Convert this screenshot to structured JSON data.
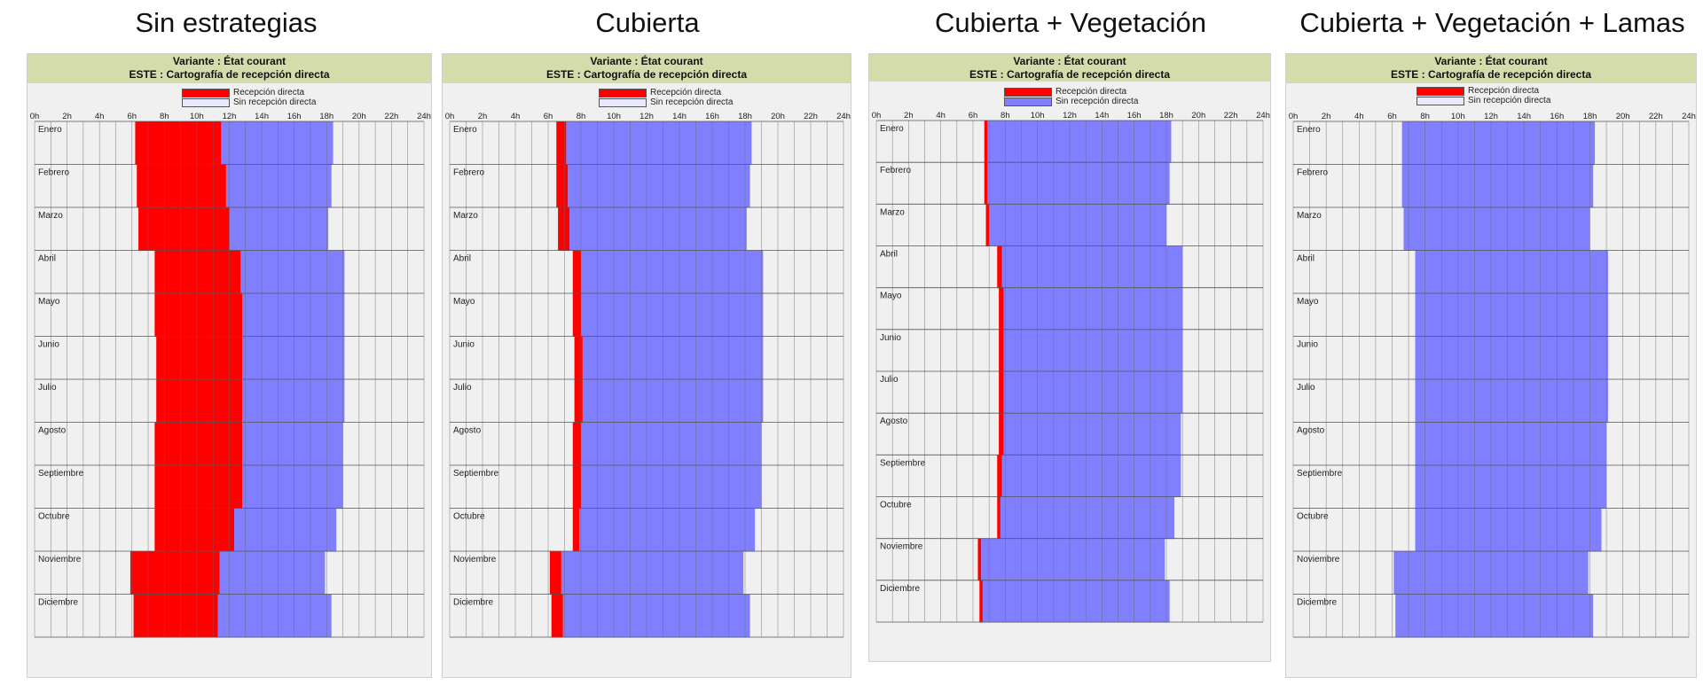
{
  "colors": {
    "direct": "#ff0000",
    "indirect": "#8080ff",
    "header_bg": "#d5dcab",
    "plot_bg": "#f0f0f0"
  },
  "legend": {
    "direct": "Recepción directa",
    "indirect": "Sin recepción directa"
  },
  "header": {
    "line1": "Variante : État courant",
    "line2": "ESTE : Cartografía de recepción directa"
  },
  "x_ticks": [
    "0h",
    "2h",
    "4h",
    "6h",
    "8h",
    "10h",
    "12h",
    "14h",
    "16h",
    "18h",
    "20h",
    "22h",
    "24h"
  ],
  "months": [
    "Enero",
    "Febrero",
    "Marzo",
    "Abril",
    "Mayo",
    "Junio",
    "Julio",
    "Agosto",
    "Septiembre",
    "Octubre",
    "Noviembre",
    "Diciembre"
  ],
  "chart_data": [
    {
      "type": "area",
      "title": "Sin estrategias",
      "xlim": [
        0,
        24
      ],
      "x_unit": "h",
      "categories": [
        "Enero",
        "Febrero",
        "Marzo",
        "Abril",
        "Mayo",
        "Junio",
        "Julio",
        "Agosto",
        "Septiembre",
        "Octubre",
        "Noviembre",
        "Diciembre"
      ],
      "series": [
        {
          "name": "Recepción directa",
          "start_h": [
            6.2,
            6.3,
            6.4,
            7.4,
            7.4,
            7.5,
            7.5,
            7.4,
            7.4,
            7.4,
            5.9,
            6.1
          ],
          "end_h": [
            11.5,
            11.8,
            12.0,
            12.7,
            12.8,
            12.8,
            12.8,
            12.8,
            12.8,
            12.3,
            11.4,
            11.3
          ]
        },
        {
          "name": "Sin recepción directa",
          "start_h": [
            11.5,
            11.8,
            12.0,
            12.7,
            12.8,
            12.8,
            12.8,
            12.8,
            12.8,
            12.3,
            11.4,
            11.3
          ],
          "end_h": [
            18.4,
            18.3,
            18.1,
            19.1,
            19.1,
            19.1,
            19.1,
            19.0,
            19.0,
            18.6,
            17.9,
            18.3
          ]
        }
      ]
    },
    {
      "type": "area",
      "title": "Cubierta",
      "xlim": [
        0,
        24
      ],
      "x_unit": "h",
      "categories": [
        "Enero",
        "Febrero",
        "Marzo",
        "Abril",
        "Mayo",
        "Junio",
        "Julio",
        "Agosto",
        "Septiembre",
        "Octubre",
        "Noviembre",
        "Diciembre"
      ],
      "series": [
        {
          "name": "Recepción directa",
          "start_h": [
            6.5,
            6.5,
            6.6,
            7.5,
            7.5,
            7.6,
            7.6,
            7.5,
            7.5,
            7.5,
            6.1,
            6.2
          ],
          "end_h": [
            7.1,
            7.2,
            7.3,
            8.0,
            8.0,
            8.1,
            8.1,
            8.0,
            8.0,
            7.9,
            6.8,
            6.9
          ]
        },
        {
          "name": "Sin recepción directa",
          "start_h": [
            7.1,
            7.2,
            7.3,
            8.0,
            8.0,
            8.1,
            8.1,
            8.0,
            8.0,
            7.9,
            6.8,
            6.9
          ],
          "end_h": [
            18.4,
            18.3,
            18.1,
            19.1,
            19.1,
            19.1,
            19.1,
            19.0,
            19.0,
            18.6,
            17.9,
            18.3
          ]
        }
      ]
    },
    {
      "type": "area",
      "title": "Cubierta + Vegetación",
      "xlim": [
        0,
        24
      ],
      "x_unit": "h",
      "categories": [
        "Enero",
        "Febrero",
        "Marzo",
        "Abril",
        "Mayo",
        "Junio",
        "Julio",
        "Agosto",
        "Septiembre",
        "Octubre",
        "Noviembre",
        "Diciembre"
      ],
      "series": [
        {
          "name": "Recepción directa",
          "start_h": [
            6.7,
            6.7,
            6.8,
            7.5,
            7.6,
            7.6,
            7.6,
            7.6,
            7.5,
            7.5,
            6.3,
            6.4
          ],
          "end_h": [
            6.9,
            6.9,
            7.0,
            7.8,
            7.9,
            7.9,
            7.9,
            7.9,
            7.8,
            7.7,
            6.5,
            6.6
          ]
        },
        {
          "name": "Sin recepción directa",
          "start_h": [
            6.9,
            6.9,
            7.0,
            7.8,
            7.9,
            7.9,
            7.9,
            7.9,
            7.8,
            7.7,
            6.5,
            6.6
          ],
          "end_h": [
            18.3,
            18.2,
            18.0,
            19.0,
            19.0,
            19.0,
            19.0,
            18.9,
            18.9,
            18.5,
            17.9,
            18.2
          ]
        }
      ]
    },
    {
      "type": "area",
      "title": "Cubierta + Vegetación + Lamas",
      "xlim": [
        0,
        24
      ],
      "x_unit": "h",
      "categories": [
        "Enero",
        "Febrero",
        "Marzo",
        "Abril",
        "Mayo",
        "Junio",
        "Julio",
        "Agosto",
        "Septiembre",
        "Octubre",
        "Noviembre",
        "Diciembre"
      ],
      "series": [
        {
          "name": "Recepción directa",
          "start_h": [
            6.6,
            6.6,
            6.7,
            7.4,
            7.4,
            7.4,
            7.4,
            7.4,
            7.4,
            7.4,
            6.1,
            6.2
          ],
          "end_h": [
            6.6,
            6.6,
            6.7,
            7.4,
            7.4,
            7.4,
            7.4,
            7.4,
            7.4,
            7.4,
            6.1,
            6.2
          ]
        },
        {
          "name": "Sin recepción directa",
          "start_h": [
            6.6,
            6.6,
            6.7,
            7.4,
            7.4,
            7.4,
            7.4,
            7.4,
            7.4,
            7.4,
            6.1,
            6.2
          ],
          "end_h": [
            18.3,
            18.2,
            18.0,
            19.1,
            19.1,
            19.1,
            19.1,
            19.0,
            19.0,
            18.7,
            17.9,
            18.2
          ]
        }
      ]
    }
  ]
}
